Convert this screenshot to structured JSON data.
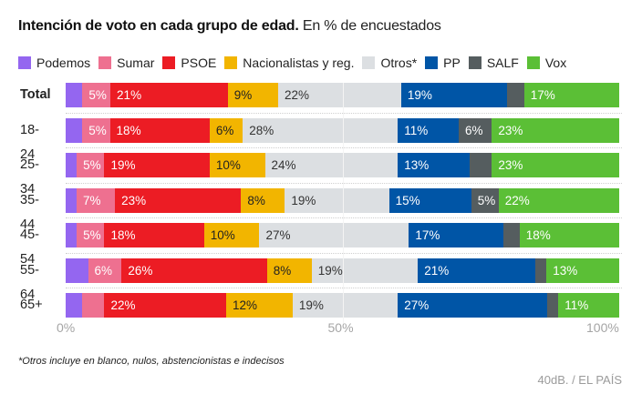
{
  "title": {
    "bold": "Intención de voto en cada grupo de edad.",
    "subtitle": "En % de encuestados"
  },
  "legend": [
    {
      "name": "Podemos",
      "color": "#9466f0"
    },
    {
      "name": "Sumar",
      "color": "#ee7090"
    },
    {
      "name": "PSOE",
      "color": "#ec1c24"
    },
    {
      "name": "Nacionalistas y reg.",
      "color": "#f2b500"
    },
    {
      "name": "Otros*",
      "color": "#dcdfe2"
    },
    {
      "name": "PP",
      "color": "#0055a6"
    },
    {
      "name": "SALF",
      "color": "#555d5f"
    },
    {
      "name": "Vox",
      "color": "#5bbf36"
    }
  ],
  "footnote": "*Otros incluye en blanco, nulos, abstencionistas e indecisos",
  "source": "40dB. / EL PAÍS",
  "chart_data": {
    "type": "bar",
    "orientation": "horizontal",
    "stacked": true,
    "title": "Intención de voto en cada grupo de edad. En % de encuestados",
    "xlabel": "",
    "ylabel": "",
    "xlim": [
      0,
      100
    ],
    "x_ticks": [
      "0%",
      "50%",
      "100%"
    ],
    "legend_position": "top",
    "categories": [
      "Total",
      "18-24",
      "25-34",
      "35-44",
      "45-54",
      "55-64",
      "65+"
    ],
    "series": [
      {
        "name": "Podemos",
        "color": "#9466f0",
        "values": [
          3,
          3,
          2,
          2,
          2,
          4,
          3
        ],
        "labels": [
          "",
          "",
          "",
          "",
          "",
          "",
          ""
        ]
      },
      {
        "name": "Sumar",
        "color": "#ee7090",
        "values": [
          5,
          5,
          5,
          7,
          5,
          6,
          4
        ],
        "labels": [
          "5%",
          "5%",
          "5%",
          "7%",
          "5%",
          "6%",
          ""
        ]
      },
      {
        "name": "PSOE",
        "color": "#ec1c24",
        "values": [
          21,
          18,
          19,
          23,
          18,
          26,
          22
        ],
        "labels": [
          "21%",
          "18%",
          "19%",
          "23%",
          "18%",
          "26%",
          "22%"
        ]
      },
      {
        "name": "Nacionalistas y reg.",
        "color": "#f2b500",
        "values": [
          9,
          6,
          10,
          8,
          10,
          8,
          12
        ],
        "labels": [
          "9%",
          "6%",
          "10%",
          "8%",
          "10%",
          "8%",
          "12%"
        ]
      },
      {
        "name": "Otros*",
        "color": "#dcdfe2",
        "values": [
          22,
          28,
          24,
          19,
          27,
          19,
          19
        ],
        "labels": [
          "22%",
          "28%",
          "24%",
          "19%",
          "27%",
          "19%",
          "19%"
        ]
      },
      {
        "name": "PP",
        "color": "#0055a6",
        "values": [
          19,
          11,
          13,
          15,
          17,
          21,
          27
        ],
        "labels": [
          "19%",
          "11%",
          "13%",
          "15%",
          "17%",
          "21%",
          "27%"
        ]
      },
      {
        "name": "SALF",
        "color": "#555d5f",
        "values": [
          3,
          6,
          4,
          5,
          3,
          2,
          2
        ],
        "labels": [
          "",
          "6%",
          "",
          "5%",
          "",
          "",
          ""
        ]
      },
      {
        "name": "Vox",
        "color": "#5bbf36",
        "values": [
          17,
          23,
          23,
          22,
          18,
          13,
          11
        ],
        "labels": [
          "17%",
          "23%",
          "23%",
          "22%",
          "18%",
          "13%",
          "11%"
        ]
      }
    ],
    "label_colors": {
      "Podemos": "#ffffff",
      "Sumar": "#ffffff",
      "PSOE": "#ffffff",
      "Nacionalistas y reg.": "#222222",
      "Otros*": "#333333",
      "PP": "#ffffff",
      "SALF": "#ffffff",
      "Vox": "#ffffff"
    }
  }
}
